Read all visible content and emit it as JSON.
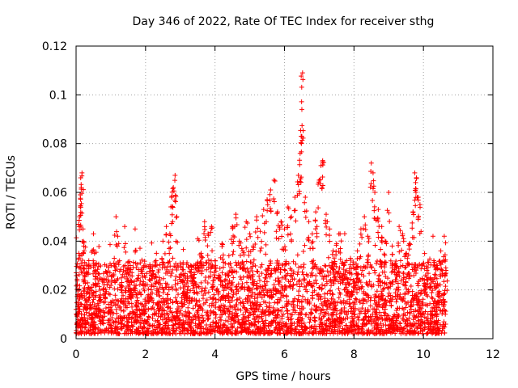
{
  "chart_data": {
    "type": "scatter",
    "title": "Day 346 of 2022, Rate Of TEC Index for receiver sthg",
    "xlabel": "GPS time / hours",
    "ylabel": "ROTI / TECUs",
    "xlim": [
      0,
      12
    ],
    "ylim": [
      0,
      0.12
    ],
    "xticks": [
      0,
      2,
      4,
      6,
      8,
      10,
      12
    ],
    "xtick_labels": [
      "0",
      "2",
      "4",
      "6",
      "8",
      "10",
      "12"
    ],
    "yticks": [
      0,
      0.02,
      0.04,
      0.06,
      0.08,
      0.1,
      0.12
    ],
    "ytick_labels": [
      "0",
      "0.02",
      "0.04",
      "0.06",
      "0.08",
      "0.1",
      "0.12"
    ],
    "grid": true,
    "marker": "+",
    "color": "#ff0000",
    "series": [
      {
        "name": "ROTI",
        "points": [
          [
            0.0,
            0.012
          ],
          [
            0.05,
            0.018
          ],
          [
            0.08,
            0.035
          ],
          [
            0.1,
            0.05
          ],
          [
            0.12,
            0.059
          ],
          [
            0.15,
            0.062
          ],
          [
            0.17,
            0.068
          ],
          [
            0.2,
            0.045
          ],
          [
            0.22,
            0.038
          ],
          [
            0.25,
            0.026
          ],
          [
            0.3,
            0.016
          ],
          [
            0.35,
            0.021
          ],
          [
            0.4,
            0.014
          ],
          [
            0.45,
            0.01
          ],
          [
            0.5,
            0.043
          ],
          [
            0.55,
            0.028
          ],
          [
            0.6,
            0.012
          ],
          [
            0.7,
            0.018
          ],
          [
            0.8,
            0.024
          ],
          [
            0.9,
            0.027
          ],
          [
            1.0,
            0.015
          ],
          [
            1.1,
            0.033
          ],
          [
            1.15,
            0.05
          ],
          [
            1.2,
            0.042
          ],
          [
            1.3,
            0.02
          ],
          [
            1.4,
            0.046
          ],
          [
            1.5,
            0.029
          ],
          [
            1.6,
            0.018
          ],
          [
            1.7,
            0.045
          ],
          [
            1.8,
            0.026
          ],
          [
            1.9,
            0.014
          ],
          [
            2.0,
            0.022
          ],
          [
            2.1,
            0.017
          ],
          [
            2.2,
            0.028
          ],
          [
            2.3,
            0.032
          ],
          [
            2.4,
            0.025
          ],
          [
            2.5,
            0.04
          ],
          [
            2.6,
            0.046
          ],
          [
            2.7,
            0.043
          ],
          [
            2.75,
            0.058
          ],
          [
            2.8,
            0.062
          ],
          [
            2.85,
            0.067
          ],
          [
            2.9,
            0.05
          ],
          [
            3.0,
            0.031
          ],
          [
            3.1,
            0.024
          ],
          [
            3.2,
            0.019
          ],
          [
            3.3,
            0.03
          ],
          [
            3.4,
            0.027
          ],
          [
            3.5,
            0.041
          ],
          [
            3.6,
            0.035
          ],
          [
            3.7,
            0.048
          ],
          [
            3.8,
            0.043
          ],
          [
            3.9,
            0.046
          ],
          [
            4.0,
            0.032
          ],
          [
            4.1,
            0.026
          ],
          [
            4.2,
            0.039
          ],
          [
            4.3,
            0.022
          ],
          [
            4.4,
            0.034
          ],
          [
            4.5,
            0.046
          ],
          [
            4.6,
            0.051
          ],
          [
            4.7,
            0.04
          ],
          [
            4.8,
            0.036
          ],
          [
            4.9,
            0.048
          ],
          [
            5.0,
            0.043
          ],
          [
            5.1,
            0.038
          ],
          [
            5.2,
            0.05
          ],
          [
            5.3,
            0.044
          ],
          [
            5.4,
            0.053
          ],
          [
            5.5,
            0.057
          ],
          [
            5.6,
            0.061
          ],
          [
            5.7,
            0.065
          ],
          [
            5.8,
            0.052
          ],
          [
            5.9,
            0.048
          ],
          [
            6.0,
            0.045
          ],
          [
            6.1,
            0.054
          ],
          [
            6.2,
            0.05
          ],
          [
            6.3,
            0.058
          ],
          [
            6.4,
            0.067
          ],
          [
            6.45,
            0.076
          ],
          [
            6.48,
            0.083
          ],
          [
            6.5,
            0.094
          ],
          [
            6.52,
            0.109
          ],
          [
            6.6,
            0.058
          ],
          [
            6.7,
            0.048
          ],
          [
            6.8,
            0.043
          ],
          [
            6.9,
            0.052
          ],
          [
            7.0,
            0.065
          ],
          [
            7.05,
            0.071
          ],
          [
            7.1,
            0.073
          ],
          [
            7.2,
            0.051
          ],
          [
            7.3,
            0.045
          ],
          [
            7.4,
            0.036
          ],
          [
            7.5,
            0.039
          ],
          [
            7.6,
            0.043
          ],
          [
            7.7,
            0.03
          ],
          [
            7.8,
            0.025
          ],
          [
            7.9,
            0.033
          ],
          [
            8.0,
            0.029
          ],
          [
            8.1,
            0.036
          ],
          [
            8.2,
            0.045
          ],
          [
            8.3,
            0.05
          ],
          [
            8.4,
            0.042
          ],
          [
            8.5,
            0.072
          ],
          [
            8.55,
            0.068
          ],
          [
            8.6,
            0.06
          ],
          [
            8.7,
            0.053
          ],
          [
            8.8,
            0.046
          ],
          [
            8.9,
            0.04
          ],
          [
            9.0,
            0.06
          ],
          [
            9.1,
            0.038
          ],
          [
            9.2,
            0.03
          ],
          [
            9.3,
            0.046
          ],
          [
            9.4,
            0.043
          ],
          [
            9.5,
            0.035
          ],
          [
            9.6,
            0.039
          ],
          [
            9.7,
            0.052
          ],
          [
            9.75,
            0.068
          ],
          [
            9.8,
            0.066
          ],
          [
            9.85,
            0.058
          ],
          [
            9.9,
            0.055
          ],
          [
            10.0,
            0.031
          ],
          [
            10.1,
            0.028
          ],
          [
            10.2,
            0.025
          ],
          [
            10.3,
            0.032
          ],
          [
            10.4,
            0.03
          ],
          [
            10.5,
            0.036
          ],
          [
            10.6,
            0.042
          ],
          [
            10.65,
            0.028
          ]
        ],
        "dense_band": {
          "x_range": [
            0,
            10.65
          ],
          "y_floor": 0.002,
          "y_ceiling_typical": 0.032,
          "y_center": 0.011
        }
      }
    ]
  }
}
